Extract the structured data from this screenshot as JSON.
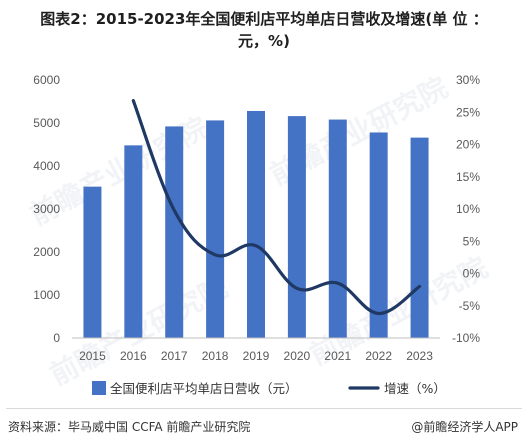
{
  "title_line1": "图表2：2015-2023年全国便利店平均单店日营收及增速(单 位 ：",
  "title_line2": "元，%)",
  "source": "资料来源：毕马威中国 CCFA 前瞻产业研究院",
  "brand": "@前瞻经济学人APP",
  "watermark": "前瞻产业研究院",
  "chart_data": {
    "type": "bar",
    "categories": [
      "2015",
      "2016",
      "2017",
      "2018",
      "2019",
      "2020",
      "2021",
      "2022",
      "2023"
    ],
    "series": [
      {
        "name": "全国便利店平均单店日营收（元）",
        "type": "bar",
        "axis": "left",
        "values": [
          3520,
          4480,
          4920,
          5060,
          5280,
          5160,
          5080,
          4780,
          4660
        ]
      },
      {
        "name": "增速（%）",
        "type": "line",
        "axis": "right",
        "values": [
          null,
          26.8,
          9.8,
          2.9,
          4.3,
          -2.3,
          -1.5,
          -6.2,
          -2.0
        ]
      }
    ],
    "ylim_left": [
      0,
      6000
    ],
    "yticks_left": [
      "0",
      "1000",
      "2000",
      "3000",
      "4000",
      "5000",
      "6000"
    ],
    "ylim_right": [
      -10,
      30
    ],
    "yticks_right": [
      "-10%",
      "-5%",
      "0%",
      "5%",
      "10%",
      "15%",
      "20%",
      "25%",
      "30%"
    ],
    "legend_position": "bottom",
    "grid": false,
    "colors": {
      "bar": "#4472c4",
      "line": "#1f3864"
    }
  }
}
